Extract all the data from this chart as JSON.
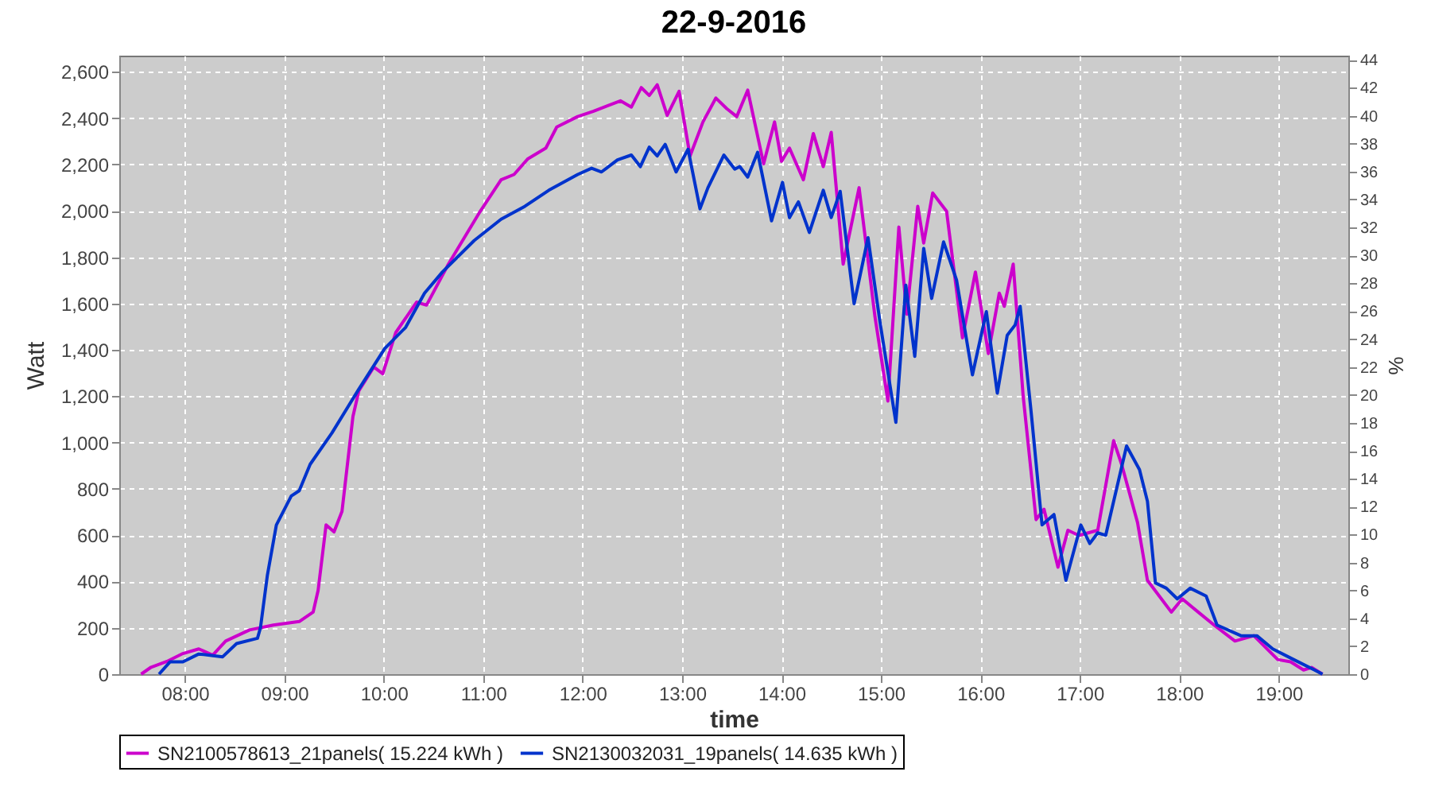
{
  "chart_data": {
    "type": "line",
    "title": "22-9-2016",
    "xlabel": "time",
    "ylabel": "Watt",
    "y2label": "%",
    "xlim": [
      7.34,
      19.7
    ],
    "xticks": [
      {
        "value": 8,
        "label": "08:00"
      },
      {
        "value": 9,
        "label": "09:00"
      },
      {
        "value": 10,
        "label": "10:00"
      },
      {
        "value": 11,
        "label": "11:00"
      },
      {
        "value": 12,
        "label": "12:00"
      },
      {
        "value": 13,
        "label": "13:00"
      },
      {
        "value": 14,
        "label": "14:00"
      },
      {
        "value": 15,
        "label": "15:00"
      },
      {
        "value": 16,
        "label": "16:00"
      },
      {
        "value": 17,
        "label": "17:00"
      },
      {
        "value": 18,
        "label": "18:00"
      },
      {
        "value": 19,
        "label": "19:00"
      }
    ],
    "ylim": [
      0,
      2670
    ],
    "yticks": [
      0,
      200,
      400,
      600,
      800,
      {
        "value": 1000,
        "label": "1,000"
      },
      {
        "value": 1200,
        "label": "1,200"
      },
      {
        "value": 1400,
        "label": "1,400"
      },
      {
        "value": 1600,
        "label": "1,600"
      },
      {
        "value": 1800,
        "label": "1,800"
      },
      {
        "value": 2000,
        "label": "2,000"
      },
      {
        "value": 2200,
        "label": "2,200"
      },
      {
        "value": 2400,
        "label": "2,400"
      },
      {
        "value": 2600,
        "label": "2,600"
      }
    ],
    "y2lim": [
      0,
      44.3
    ],
    "y2ticks": [
      0,
      2,
      4,
      6,
      8,
      10,
      12,
      14,
      16,
      18,
      20,
      22,
      24,
      26,
      28,
      30,
      32,
      34,
      36,
      38,
      40,
      42,
      44
    ],
    "grid": true,
    "legend": "bottom",
    "series": [
      {
        "name": "SN2100578613_21panels( 15.224 kWh )",
        "color": "#cc00cc",
        "x": [
          7.56,
          7.66,
          7.82,
          7.98,
          8.14,
          8.28,
          8.41,
          8.65,
          8.89,
          9.15,
          9.29,
          9.34,
          9.42,
          9.5,
          9.58,
          9.69,
          9.75,
          9.9,
          9.99,
          10.12,
          10.33,
          10.43,
          10.65,
          10.97,
          11.18,
          11.31,
          11.45,
          11.63,
          11.74,
          11.95,
          12.11,
          12.38,
          12.49,
          12.59,
          12.67,
          12.75,
          12.85,
          12.97,
          13.08,
          13.21,
          13.34,
          13.45,
          13.55,
          13.66,
          13.82,
          13.93,
          14.0,
          14.08,
          14.22,
          14.32,
          14.42,
          14.5,
          14.62,
          14.78,
          14.94,
          15.07,
          15.18,
          15.26,
          15.37,
          15.43,
          15.52,
          15.66,
          15.82,
          15.95,
          16.08,
          16.19,
          16.24,
          16.33,
          16.43,
          16.56,
          16.64,
          16.78,
          16.88,
          16.99,
          17.18,
          17.34,
          17.42,
          17.58,
          17.68,
          17.92,
          18.03,
          18.19,
          18.35,
          18.56,
          18.75,
          18.99,
          19.12,
          19.25,
          19.33,
          19.44
        ],
        "values": [
          0,
          30,
          55,
          89,
          109,
          82,
          143,
          191,
          212,
          227,
          268,
          362,
          644,
          614,
          703,
          1112,
          1224,
          1326,
          1297,
          1474,
          1606,
          1593,
          1770,
          1998,
          2134,
          2157,
          2225,
          2271,
          2362,
          2407,
          2430,
          2475,
          2448,
          2532,
          2498,
          2544,
          2412,
          2516,
          2237,
          2384,
          2487,
          2441,
          2407,
          2521,
          2203,
          2384,
          2214,
          2271,
          2134,
          2334,
          2191,
          2339,
          1770,
          2100,
          1543,
          1179,
          1930,
          1554,
          2020,
          1861,
          2077,
          1998,
          1452,
          1736,
          1384,
          1645,
          1588,
          1770,
          1201,
          667,
          712,
          462,
          621,
          599,
          621,
          1008,
          906,
          655,
          405,
          268,
          325,
          268,
          212,
          143,
          166,
          63,
          53,
          18,
          29,
          0
        ]
      },
      {
        "name": "SN2130032031_19panels( 14.635 kWh )",
        "color": "#0033cc",
        "x": [
          7.74,
          7.85,
          7.98,
          8.14,
          8.38,
          8.52,
          8.73,
          8.76,
          8.83,
          8.92,
          9.07,
          9.15,
          9.26,
          9.48,
          9.74,
          10.01,
          10.22,
          10.41,
          10.59,
          10.91,
          11.18,
          11.42,
          11.66,
          11.95,
          12.09,
          12.19,
          12.35,
          12.49,
          12.58,
          12.67,
          12.75,
          12.83,
          12.94,
          13.06,
          13.18,
          13.26,
          13.42,
          13.53,
          13.58,
          13.66,
          13.76,
          13.9,
          14.01,
          14.08,
          14.17,
          14.28,
          14.42,
          14.5,
          14.59,
          14.73,
          14.87,
          14.99,
          15.15,
          15.25,
          15.34,
          15.43,
          15.51,
          15.63,
          15.76,
          15.92,
          16.06,
          16.17,
          16.27,
          16.35,
          16.4,
          16.51,
          16.62,
          16.74,
          16.86,
          17.01,
          17.1,
          17.18,
          17.26,
          17.47,
          17.6,
          17.68,
          17.76,
          17.87,
          17.98,
          18.11,
          18.27,
          18.38,
          18.62,
          18.78,
          18.94,
          19.15,
          19.36,
          19.44
        ],
        "values": [
          0,
          53,
          53,
          87,
          75,
          132,
          155,
          200,
          428,
          644,
          769,
          792,
          906,
          1042,
          1224,
          1406,
          1497,
          1645,
          1736,
          1872,
          1964,
          2020,
          2089,
          2157,
          2184,
          2168,
          2220,
          2241,
          2191,
          2275,
          2237,
          2287,
          2168,
          2266,
          2009,
          2100,
          2241,
          2180,
          2191,
          2146,
          2253,
          1957,
          2123,
          1971,
          2039,
          1907,
          2089,
          1971,
          2084,
          1599,
          1884,
          1520,
          1087,
          1679,
          1372,
          1838,
          1622,
          1866,
          1702,
          1292,
          1565,
          1213,
          1463,
          1508,
          1588,
          1133,
          644,
          689,
          405,
          644,
          564,
          610,
          599,
          985,
          883,
          746,
          394,
          371,
          325,
          371,
          337,
          212,
          166,
          166,
          109,
          63,
          18,
          0
        ]
      }
    ]
  }
}
